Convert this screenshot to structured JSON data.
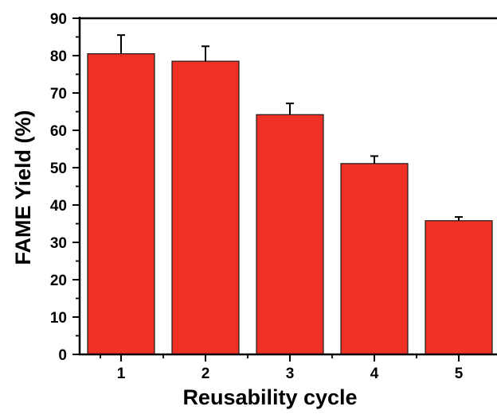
{
  "chart_data": {
    "type": "bar",
    "title": "",
    "xlabel": "Reusability cycle",
    "ylabel": "FAME Yield (%)",
    "categories": [
      "1",
      "2",
      "3",
      "4",
      "5"
    ],
    "series": [
      {
        "values": [
          80.5,
          78.5,
          64.2,
          51.1,
          35.8
        ],
        "errors": [
          5.0,
          4.0,
          3.0,
          2.0,
          1.0
        ]
      }
    ],
    "ylim": [
      0,
      90
    ],
    "yticks": [
      "0",
      "10",
      "20",
      "30",
      "40",
      "50",
      "60",
      "70",
      "80",
      "90"
    ],
    "grid": false,
    "legend": "none",
    "colors": {
      "bar_fill": "#ee3124",
      "bar_stroke": "#1a1a1a",
      "axis": "#000000"
    }
  }
}
